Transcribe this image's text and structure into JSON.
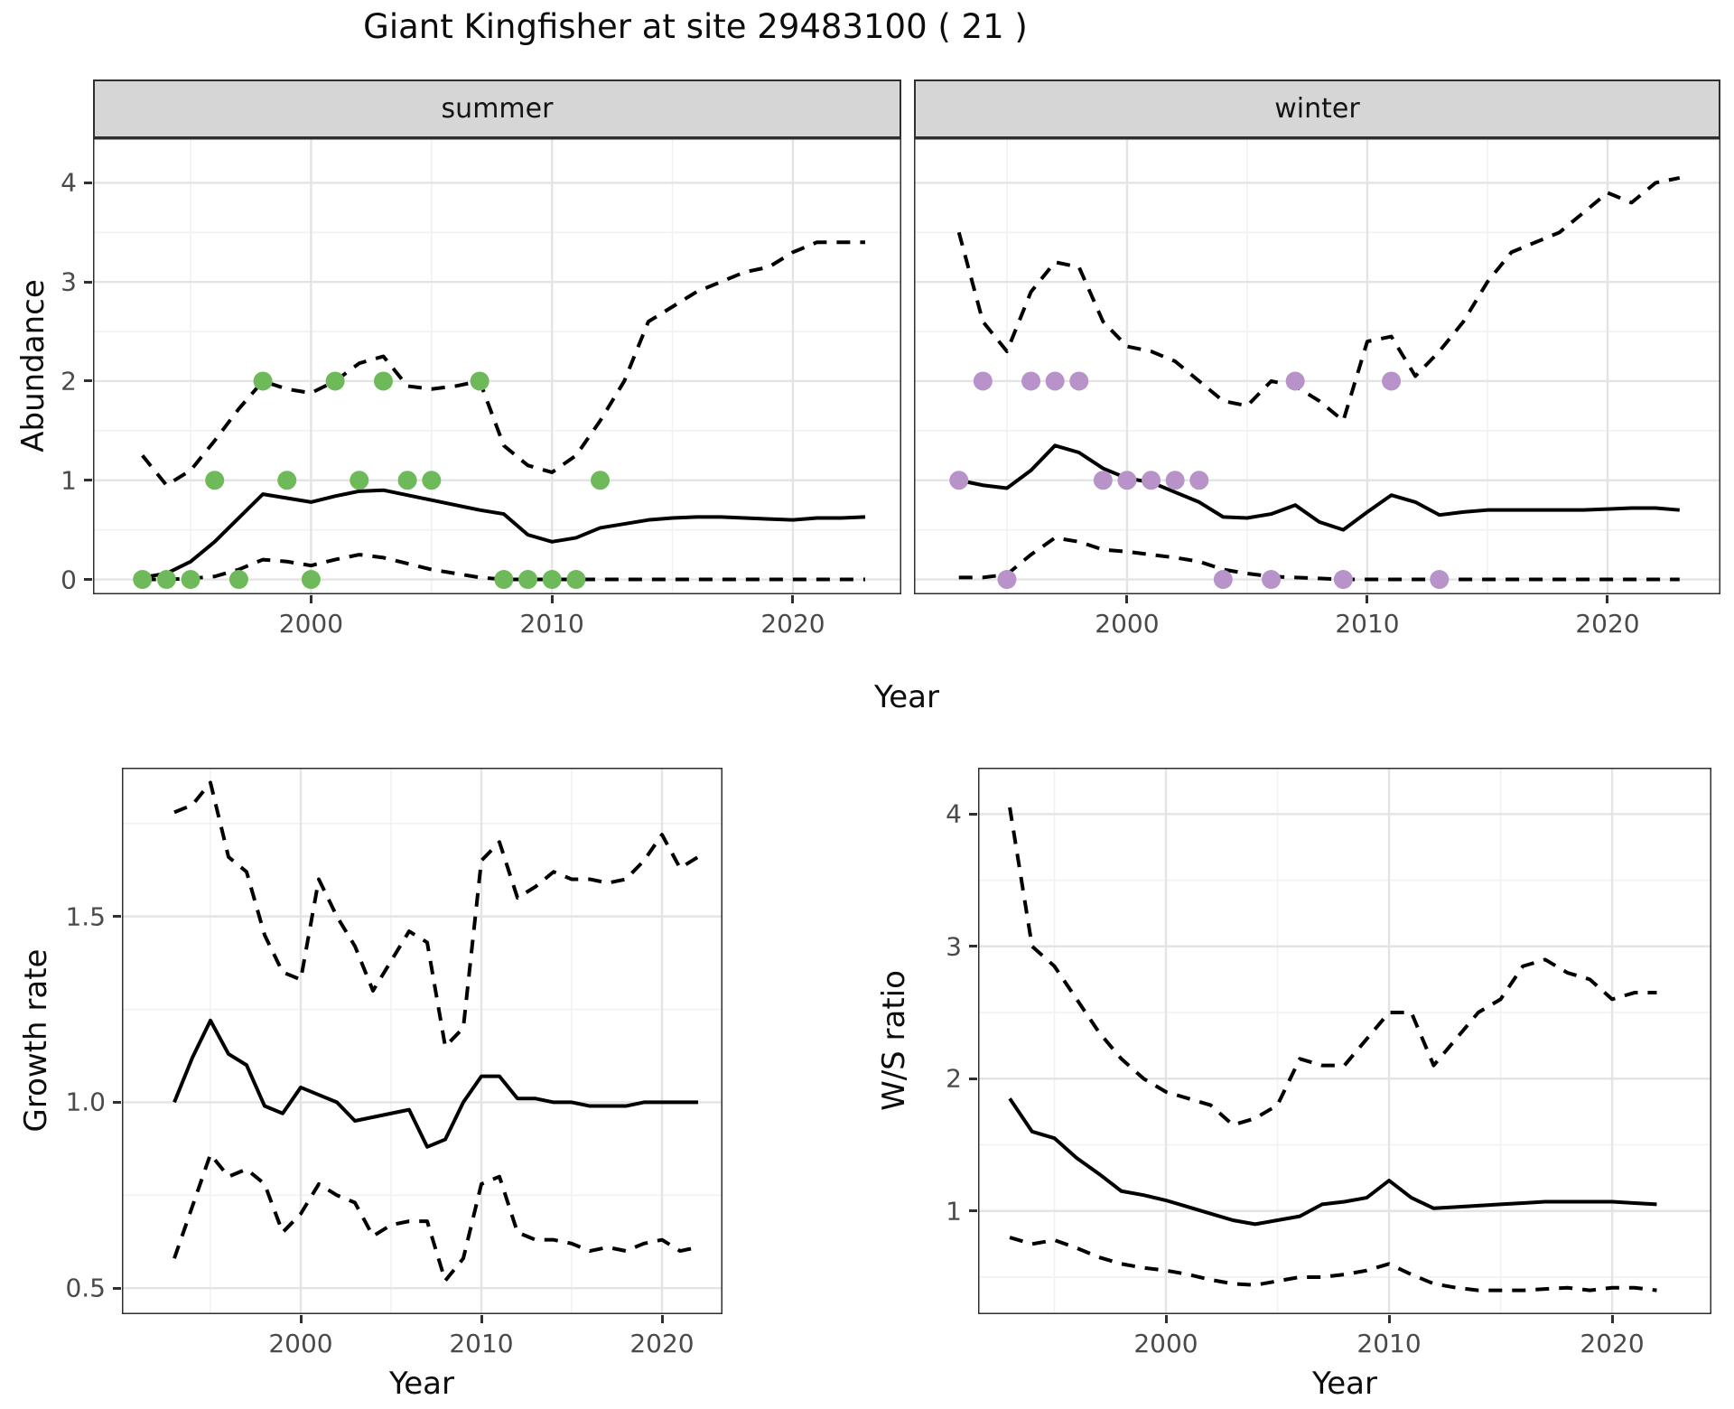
{
  "title": "Giant Kingfisher at site 29483100 ( 21 )",
  "colors": {
    "line": "#000000",
    "observation_summer": "#6eb95a",
    "observation_winter": "#b793c9",
    "strip_background": "#d6d6d6",
    "panel_border": "#2f2f2f",
    "grid_major": "#e4e4e4",
    "grid_minor": "#f1f1f1"
  },
  "chart_data": [
    {
      "type": "line",
      "facet": "summer",
      "xlabel": "Year",
      "ylabel": "Abundance",
      "legend_position": "none",
      "grid": true,
      "xlim": [
        1990.95,
        2024.5
      ],
      "ylim": [
        -0.15,
        4.45
      ],
      "x_ticks": [
        2000,
        2010,
        2020
      ],
      "x_tick_labels": [
        "2000",
        "2010",
        "2020"
      ],
      "y_ticks": [
        0,
        1,
        2,
        3,
        4
      ],
      "y_tick_labels": [
        "0",
        "1",
        "2",
        "3",
        "4"
      ],
      "x": [
        1993,
        1994,
        1995,
        1996,
        1997,
        1998,
        1999,
        2000,
        2001,
        2002,
        2003,
        2004,
        2005,
        2006,
        2007,
        2008,
        2009,
        2010,
        2011,
        2012,
        2013,
        2014,
        2015,
        2016,
        2017,
        2018,
        2019,
        2020,
        2021,
        2022,
        2023
      ],
      "series": [
        {
          "name": "median",
          "style": "solid",
          "values": [
            0.02,
            0.06,
            0.18,
            0.38,
            0.62,
            0.86,
            0.82,
            0.78,
            0.84,
            0.89,
            0.9,
            0.85,
            0.8,
            0.75,
            0.7,
            0.66,
            0.45,
            0.38,
            0.42,
            0.52,
            0.56,
            0.6,
            0.62,
            0.63,
            0.63,
            0.62,
            0.61,
            0.6,
            0.62,
            0.62,
            0.63
          ]
        },
        {
          "name": "upper-95ci",
          "style": "dashed",
          "values": [
            1.25,
            0.95,
            1.1,
            1.4,
            1.72,
            2.0,
            1.92,
            1.88,
            2.0,
            2.18,
            2.25,
            1.95,
            1.92,
            1.95,
            2.0,
            1.35,
            1.15,
            1.08,
            1.25,
            1.6,
            2.0,
            2.6,
            2.75,
            2.9,
            3.0,
            3.1,
            3.15,
            3.3,
            3.4,
            3.4,
            3.4
          ]
        },
        {
          "name": "lower-95ci",
          "style": "dashed",
          "values": [
            0,
            0,
            0.01,
            0.03,
            0.1,
            0.2,
            0.18,
            0.14,
            0.2,
            0.25,
            0.22,
            0.16,
            0.1,
            0.06,
            0.02,
            0,
            0,
            0,
            0,
            0,
            0,
            0,
            0,
            0,
            0,
            0,
            0,
            0,
            0,
            0,
            0
          ]
        },
        {
          "name": "observed-counts",
          "style": "points",
          "x": [
            1993,
            1994,
            1995,
            1996,
            1997,
            1998,
            1999,
            2000,
            2001,
            2002,
            2003,
            2004,
            2005,
            2007,
            2008,
            2009,
            2010,
            2011,
            2012
          ],
          "y": [
            0,
            0,
            0,
            1,
            0,
            2,
            1,
            0,
            2,
            1,
            2,
            1,
            1,
            2,
            0,
            0,
            0,
            0,
            1
          ]
        }
      ],
      "point_color": "#6eb95a"
    },
    {
      "type": "line",
      "facet": "winter",
      "xlabel": "Year",
      "ylabel": "Abundance",
      "legend_position": "none",
      "grid": true,
      "xlim": [
        1991.13,
        2024.7
      ],
      "ylim": [
        -0.15,
        4.45
      ],
      "x_ticks": [
        2000,
        2010,
        2020
      ],
      "x_tick_labels": [
        "2000",
        "2010",
        "2020"
      ],
      "y_ticks": [
        0,
        1,
        2,
        3,
        4
      ],
      "y_tick_labels": [
        "0",
        "1",
        "2",
        "3",
        "4"
      ],
      "x": [
        1993,
        1994,
        1995,
        1996,
        1997,
        1998,
        1999,
        2000,
        2001,
        2002,
        2003,
        2004,
        2005,
        2006,
        2007,
        2008,
        2009,
        2010,
        2011,
        2012,
        2013,
        2014,
        2015,
        2016,
        2017,
        2018,
        2019,
        2020,
        2021,
        2022,
        2023
      ],
      "series": [
        {
          "name": "median",
          "style": "solid",
          "values": [
            1.0,
            0.95,
            0.92,
            1.1,
            1.35,
            1.28,
            1.12,
            1.02,
            0.98,
            0.88,
            0.78,
            0.63,
            0.62,
            0.66,
            0.75,
            0.58,
            0.5,
            0.68,
            0.85,
            0.78,
            0.65,
            0.68,
            0.7,
            0.7,
            0.7,
            0.7,
            0.7,
            0.71,
            0.72,
            0.72,
            0.7
          ]
        },
        {
          "name": "upper-95ci",
          "style": "dashed",
          "values": [
            3.5,
            2.6,
            2.3,
            2.9,
            3.2,
            3.15,
            2.6,
            2.35,
            2.3,
            2.2,
            2.0,
            1.8,
            1.75,
            2.0,
            1.95,
            1.8,
            1.6,
            2.4,
            2.45,
            2.05,
            2.3,
            2.6,
            3.0,
            3.3,
            3.4,
            3.5,
            3.7,
            3.9,
            3.8,
            4.0,
            4.05
          ]
        },
        {
          "name": "lower-95ci",
          "style": "dashed",
          "values": [
            0.02,
            0.02,
            0.05,
            0.25,
            0.42,
            0.38,
            0.3,
            0.28,
            0.25,
            0.22,
            0.18,
            0.1,
            0.06,
            0.03,
            0.02,
            0.01,
            0,
            0,
            0,
            0,
            0,
            0,
            0,
            0,
            0,
            0,
            0,
            0,
            0,
            0,
            0
          ]
        },
        {
          "name": "observed-counts",
          "style": "points",
          "x": [
            1993,
            1994,
            1995,
            1996,
            1997,
            1998,
            1999,
            2000,
            2001,
            2002,
            2003,
            2004,
            2006,
            2007,
            2009,
            2011,
            2013
          ],
          "y": [
            1,
            2,
            0,
            2,
            2,
            2,
            1,
            1,
            1,
            1,
            1,
            0,
            0,
            2,
            0,
            2,
            0
          ]
        }
      ],
      "point_color": "#b793c9"
    },
    {
      "type": "line",
      "facet": "",
      "xlabel": "Year",
      "ylabel": "Growth rate",
      "legend_position": "none",
      "grid": true,
      "xlim": [
        1990.1,
        2023.35
      ],
      "ylim": [
        0.43,
        1.9
      ],
      "x_ticks": [
        2000,
        2010,
        2020
      ],
      "x_tick_labels": [
        "2000",
        "2010",
        "2020"
      ],
      "y_ticks": [
        0.5,
        1.0,
        1.5
      ],
      "y_tick_labels": [
        "0.5",
        "1.0",
        "1.5"
      ],
      "x": [
        1993,
        1994,
        1995,
        1996,
        1997,
        1998,
        1999,
        2000,
        2001,
        2002,
        2003,
        2004,
        2005,
        2006,
        2007,
        2008,
        2009,
        2010,
        2011,
        2012,
        2013,
        2014,
        2015,
        2016,
        2017,
        2018,
        2019,
        2020,
        2021,
        2022
      ],
      "series": [
        {
          "name": "median",
          "style": "solid",
          "values": [
            1.0,
            1.12,
            1.22,
            1.13,
            1.1,
            0.99,
            0.97,
            1.04,
            1.02,
            1.0,
            0.95,
            0.96,
            0.97,
            0.98,
            0.88,
            0.9,
            1.0,
            1.07,
            1.07,
            1.01,
            1.01,
            1.0,
            1.0,
            0.99,
            0.99,
            0.99,
            1.0,
            1.0,
            1.0,
            1.0
          ]
        },
        {
          "name": "upper-95ci",
          "style": "dashed",
          "values": [
            1.78,
            1.8,
            1.86,
            1.66,
            1.62,
            1.45,
            1.35,
            1.33,
            1.6,
            1.5,
            1.42,
            1.3,
            1.38,
            1.46,
            1.43,
            1.15,
            1.2,
            1.65,
            1.7,
            1.55,
            1.58,
            1.62,
            1.6,
            1.6,
            1.59,
            1.6,
            1.65,
            1.72,
            1.63,
            1.66
          ]
        },
        {
          "name": "lower-95ci",
          "style": "dashed",
          "values": [
            0.58,
            0.72,
            0.86,
            0.8,
            0.82,
            0.78,
            0.65,
            0.7,
            0.78,
            0.75,
            0.73,
            0.64,
            0.67,
            0.68,
            0.68,
            0.52,
            0.58,
            0.78,
            0.8,
            0.65,
            0.63,
            0.63,
            0.62,
            0.6,
            0.61,
            0.6,
            0.62,
            0.63,
            0.6,
            0.61
          ]
        }
      ],
      "point_color": "#000000"
    },
    {
      "type": "line",
      "facet": "",
      "xlabel": "Year",
      "ylabel": "W/S ratio",
      "legend_position": "none",
      "grid": true,
      "xlim": [
        1991.58,
        2024.45
      ],
      "ylim": [
        0.22,
        4.35
      ],
      "x_ticks": [
        2000,
        2010,
        2020
      ],
      "x_tick_labels": [
        "2000",
        "2010",
        "2020"
      ],
      "y_ticks": [
        1,
        2,
        3,
        4
      ],
      "y_tick_labels": [
        "1",
        "2",
        "3",
        "4"
      ],
      "x": [
        1993,
        1994,
        1995,
        1996,
        1997,
        1998,
        1999,
        2000,
        2001,
        2002,
        2003,
        2004,
        2005,
        2006,
        2007,
        2008,
        2009,
        2010,
        2011,
        2012,
        2013,
        2014,
        2015,
        2016,
        2017,
        2018,
        2019,
        2020,
        2021,
        2022
      ],
      "series": [
        {
          "name": "median",
          "style": "solid",
          "values": [
            1.85,
            1.6,
            1.55,
            1.4,
            1.28,
            1.15,
            1.12,
            1.08,
            1.03,
            0.98,
            0.93,
            0.9,
            0.93,
            0.96,
            1.05,
            1.07,
            1.1,
            1.23,
            1.1,
            1.02,
            1.03,
            1.04,
            1.05,
            1.06,
            1.07,
            1.07,
            1.07,
            1.07,
            1.06,
            1.05
          ]
        },
        {
          "name": "upper-95ci",
          "style": "dashed",
          "values": [
            4.05,
            3.0,
            2.85,
            2.6,
            2.35,
            2.15,
            2.0,
            1.9,
            1.85,
            1.8,
            1.65,
            1.7,
            1.8,
            2.15,
            2.1,
            2.1,
            2.3,
            2.5,
            2.5,
            2.1,
            2.3,
            2.5,
            2.6,
            2.85,
            2.9,
            2.8,
            2.75,
            2.6,
            2.65,
            2.65
          ]
        },
        {
          "name": "lower-95ci",
          "style": "dashed",
          "values": [
            0.8,
            0.75,
            0.78,
            0.72,
            0.65,
            0.6,
            0.57,
            0.55,
            0.52,
            0.48,
            0.45,
            0.44,
            0.47,
            0.5,
            0.5,
            0.52,
            0.55,
            0.6,
            0.52,
            0.45,
            0.42,
            0.4,
            0.4,
            0.4,
            0.41,
            0.42,
            0.4,
            0.42,
            0.42,
            0.4
          ]
        }
      ],
      "point_color": "#000000"
    }
  ]
}
